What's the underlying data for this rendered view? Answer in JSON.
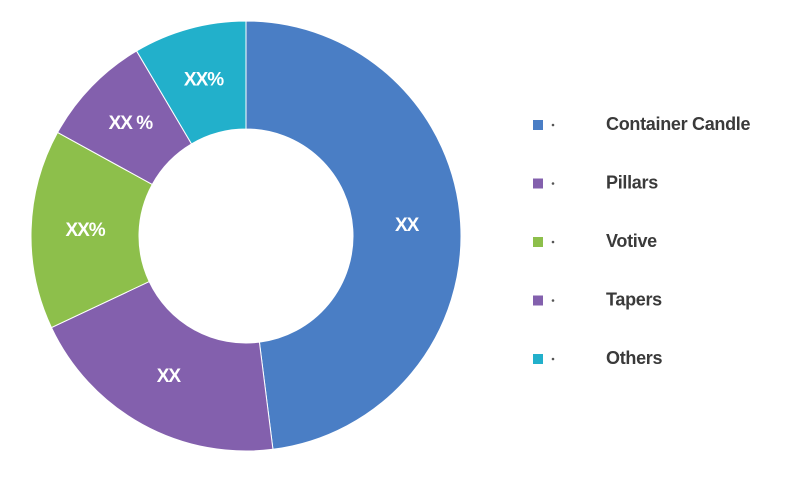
{
  "chart_data": {
    "type": "donut",
    "categories": [
      "Container Candle",
      "Pillars",
      "Votive",
      "Tapers",
      "Others"
    ],
    "values": [
      48,
      20,
      15,
      8.5,
      8.5
    ],
    "value_labels": [
      "XX",
      "XX",
      "XX%",
      "XX %",
      "XX%"
    ],
    "colors": [
      "#4a7ec5",
      "#8360ad",
      "#8dbf4b",
      "#8360ad",
      "#22b0cb"
    ]
  }
}
